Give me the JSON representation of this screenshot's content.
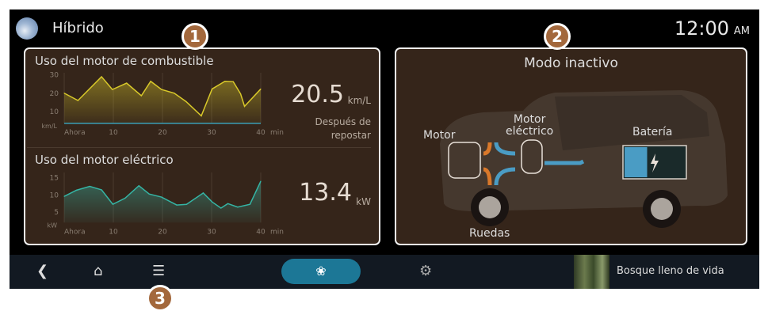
{
  "header": {
    "title": "Híbrido",
    "time": "12:00",
    "ampm": "AM"
  },
  "fuel": {
    "title": "Uso del motor de combustible",
    "value": "20.5",
    "unit": "km/L",
    "note_line1": "Después de",
    "note_line2": "repostar"
  },
  "electric": {
    "title": "Uso del motor eléctrico",
    "value": "13.4",
    "unit": "kW"
  },
  "mode": {
    "title": "Modo inactivo",
    "labels": {
      "engine": "Motor",
      "motor_line1": "Motor",
      "motor_line2": "eléctrico",
      "battery": "Batería",
      "wheels": "Ruedas"
    },
    "battery_level": 0.375
  },
  "badges": [
    "1",
    "2",
    "3"
  ],
  "bottom": {
    "media_title": "Bosque lleno de vida",
    "icons": [
      "back-icon",
      "home-icon",
      "menu-icon",
      "leaf-icon",
      "gear-icon"
    ]
  },
  "colors": {
    "fuel_line": "#d9c92a",
    "electric_line": "#35b5a5",
    "accent": "#1c7796",
    "badge": "#a3683c",
    "panel": "#35251a"
  },
  "chart_data": [
    {
      "type": "area",
      "ylabel": "km/L",
      "xlabel": "min",
      "xticks": [
        "Ahora",
        "10",
        "20",
        "30",
        "40"
      ],
      "yticks": [
        10,
        20,
        30
      ],
      "xlim": [
        0,
        40
      ],
      "ylim": [
        0,
        32
      ],
      "x": [
        0,
        2.8,
        7.6,
        9.8,
        12.7,
        15.7,
        17.6,
        19.8,
        22.4,
        24.8,
        27.9,
        30.1,
        32.7,
        34.4,
        35.9,
        36.7,
        40
      ],
      "values": [
        20,
        16,
        29,
        22,
        25.5,
        18.6,
        26.5,
        22,
        20,
        15.4,
        7.6,
        22.3,
        26.5,
        26.3,
        19.6,
        12.8,
        22.3
      ]
    },
    {
      "type": "area",
      "ylabel": "kW",
      "xlabel": "min",
      "xticks": [
        "Ahora",
        "10",
        "20",
        "30",
        "40"
      ],
      "yticks": [
        5,
        10,
        15
      ],
      "xlim": [
        0,
        40
      ],
      "ylim": [
        0,
        17
      ],
      "x": [
        0,
        2.5,
        5.2,
        7.6,
        9.9,
        12.4,
        15.2,
        17.3,
        19.8,
        22.9,
        24.9,
        28.3,
        30.1,
        31.9,
        33.3,
        35.3,
        37.8,
        40
      ],
      "values": [
        9.6,
        11.4,
        12.5,
        11.5,
        7.3,
        9.1,
        12.7,
        10.3,
        9.4,
        7.1,
        7.3,
        10.6,
        8.0,
        6.2,
        7.5,
        6.5,
        7.3,
        14
      ]
    }
  ]
}
